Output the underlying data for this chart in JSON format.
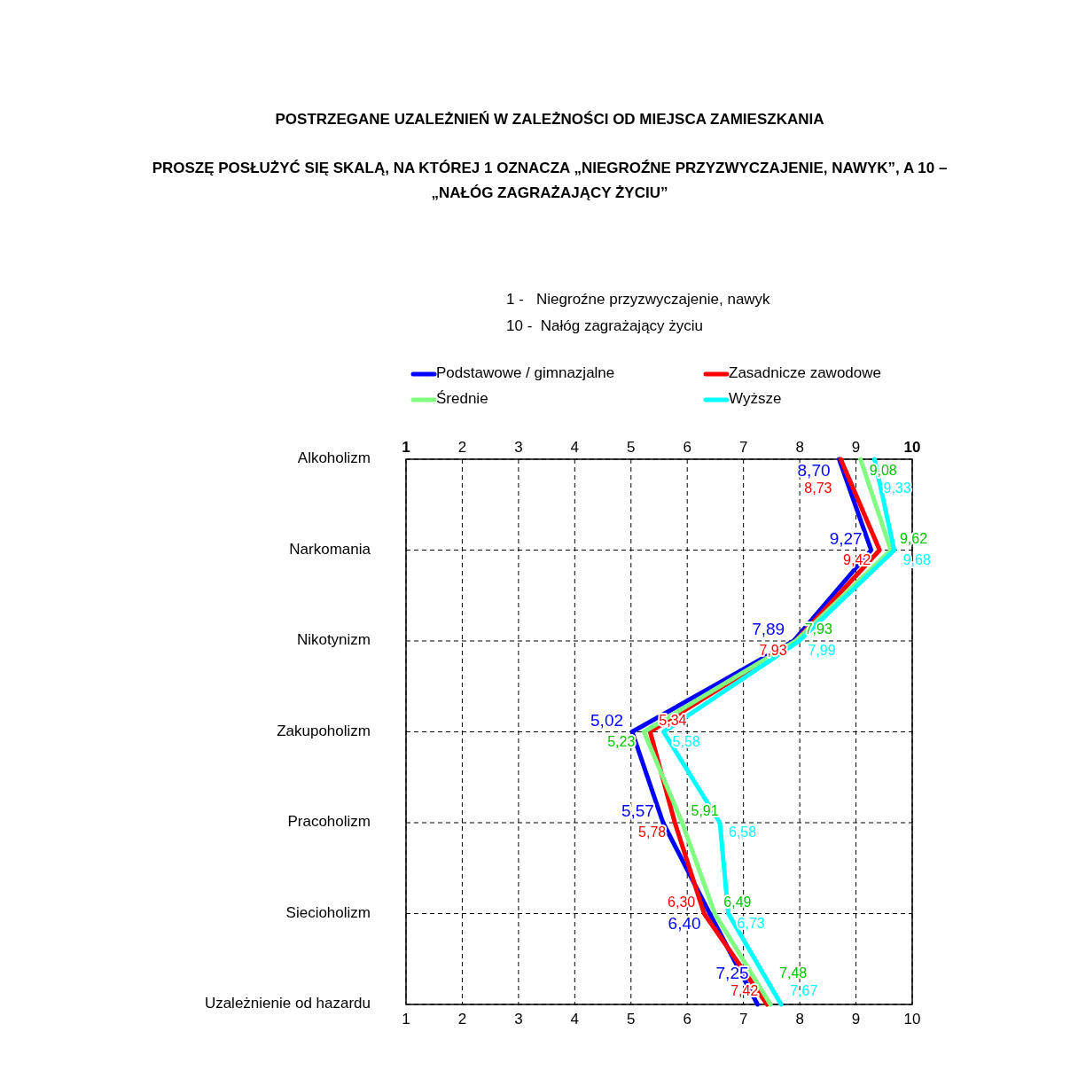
{
  "chart_data": {
    "type": "line",
    "orientation": "horizontal",
    "title": "POSTRZEGANE UZALEŻNIEŃ W ZALEŻNOŚCI OD MIEJSCA ZAMIESZKANIA",
    "subtitle": "PROSZĘ POSŁUŻYĆ SIĘ SKALĄ, NA KTÓREJ 1 OZNACZA „NIEGROŹNE PRZYZWYCZAJENIE, NAWYK”, A 10 – „NAŁÓG ZAGRAŻAJĄCY ŻYCIU”",
    "annotations": [
      "1 -   Niegroźne przyzwyczajenie, nawyk",
      "10 -  Nałóg zagrażający życiu"
    ],
    "categories": [
      "Alkoholizm",
      "Narkomania",
      "Nikotynizm",
      "Zakupoholizm",
      "Pracoholizm",
      "Siecioholizm",
      "Uzależnienie od hazardu"
    ],
    "xlim": [
      1,
      10
    ],
    "xticks": [
      1,
      2,
      3,
      4,
      5,
      6,
      7,
      8,
      9,
      10
    ],
    "x2lim": [
      1,
      10
    ],
    "x2ticks": [
      1,
      2,
      3,
      4,
      5,
      6,
      7,
      8,
      9,
      10
    ],
    "grid": true,
    "legend": "top",
    "marker": "none",
    "line_style": "solid",
    "series": [
      {
        "name": "Podstawowe / gimnazjalne",
        "color": "#0000ff",
        "values": [
          8.7,
          9.27,
          7.89,
          5.02,
          5.57,
          6.4,
          7.25
        ],
        "value_labels": [
          "8,70",
          "9,27",
          "7,89",
          "5,02",
          "5,57",
          "6,40",
          "7,25"
        ]
      },
      {
        "name": "Zasadnicze zawodowe",
        "color": "#ff0000",
        "values": [
          8.73,
          9.42,
          7.93,
          5.34,
          5.78,
          6.3,
          7.42
        ],
        "value_labels": [
          "8,73",
          "9,42",
          "7,93",
          "5,34",
          "5,78",
          "6,30",
          "7,42"
        ]
      },
      {
        "name": "Średnie",
        "color": "#80ff80",
        "values": [
          9.08,
          9.62,
          7.93,
          5.23,
          5.91,
          6.49,
          7.48
        ],
        "value_labels": [
          "9,08",
          "9,62",
          "7,93",
          "5,23",
          "5,91",
          "6,49",
          "7,48"
        ]
      },
      {
        "name": "Wyższe",
        "color": "#00ffff",
        "values": [
          9.33,
          9.68,
          7.99,
          5.58,
          6.58,
          6.73,
          7.67
        ],
        "value_labels": [
          "9,33",
          "9,68",
          "7,99",
          "5,58",
          "6,58",
          "6,73",
          "7,67"
        ]
      }
    ]
  }
}
